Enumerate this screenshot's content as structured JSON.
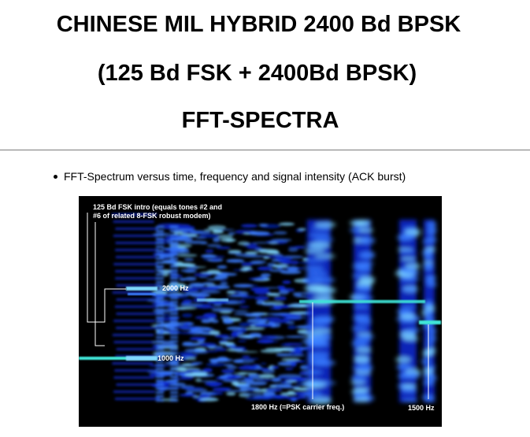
{
  "slide": {
    "title_line1": "CHINESE MIL HYBRID 2400 Bd BPSK",
    "title_line2": "(125 Bd FSK + 2400Bd BPSK)",
    "title_line3": "FFT-SPECTRA",
    "bullet": "FFT-Spectrum versus time, frequency and signal intensity (ACK burst)"
  },
  "spectrogram": {
    "annotations": {
      "fsk_intro_line1": "125 Bd FSK intro (equals tones #2 and",
      "fsk_intro_line2": "#6 of related 8-FSK robust modem)",
      "hz_2000": "2000 Hz",
      "hz_1000": "1000 Hz",
      "psk_carrier": "1800 Hz (=PSK carrier freq.)",
      "hz_1500": "1500 Hz"
    },
    "colors": {
      "background": "#000000",
      "signal_deep": "#0a2bd8",
      "signal_mid": "#3b7dff",
      "signal_bright": "#7fd8ff",
      "tone_line": "#3fe6d8",
      "annotation": "#ffffff"
    }
  }
}
